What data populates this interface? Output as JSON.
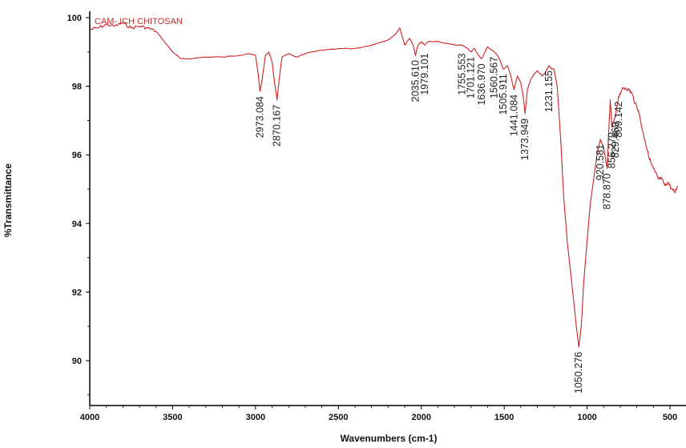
{
  "chart_data": {
    "type": "line",
    "title": "",
    "legend_entry": "CAM- ICH CHITOSAN",
    "legend_placement": "top-left",
    "xlabel": "Wavenumbers (cm-1)",
    "ylabel": "%Transmittance",
    "xlim": [
      4000,
      450
    ],
    "ylim": [
      88.7,
      100.4
    ],
    "x_reversed": true,
    "grid": false,
    "x_ticks": [
      "4000",
      "3500",
      "3000",
      "2500",
      "2000",
      "1500",
      "1000",
      "500"
    ],
    "y_ticks": [
      "100",
      "98",
      "96",
      "94",
      "92",
      "90"
    ],
    "series": [
      {
        "name": "CAM- ICH CHITOSAN",
        "color": "#cc2222",
        "x": [
          4000,
          3950,
          3900,
          3850,
          3800,
          3750,
          3700,
          3650,
          3600,
          3550,
          3500,
          3450,
          3400,
          3300,
          3200,
          3100,
          3050,
          3000,
          2985,
          2973,
          2960,
          2940,
          2920,
          2900,
          2885,
          2870,
          2855,
          2840,
          2800,
          2750,
          2700,
          2600,
          2500,
          2400,
          2300,
          2200,
          2150,
          2130,
          2100,
          2070,
          2050,
          2035,
          2020,
          2000,
          1979,
          1960,
          1900,
          1850,
          1800,
          1755,
          1720,
          1701,
          1680,
          1655,
          1636,
          1600,
          1560,
          1540,
          1530,
          1505,
          1480,
          1460,
          1441,
          1420,
          1400,
          1385,
          1374,
          1360,
          1340,
          1320,
          1300,
          1270,
          1250,
          1231,
          1215,
          1200,
          1180,
          1160,
          1140,
          1120,
          1100,
          1080,
          1065,
          1050,
          1035,
          1020,
          1000,
          980,
          960,
          940,
          920,
          900,
          879,
          860,
          850,
          830,
          810,
          790,
          770,
          750,
          730,
          710,
          690,
          670,
          650,
          630,
          610,
          590,
          570,
          550,
          530,
          510,
          490,
          470,
          455
        ],
        "y": [
          99.65,
          99.7,
          99.8,
          99.75,
          99.85,
          99.7,
          99.75,
          99.7,
          99.6,
          99.3,
          99.0,
          98.8,
          98.8,
          98.85,
          98.85,
          98.9,
          98.95,
          98.9,
          98.4,
          97.85,
          98.2,
          98.9,
          99.0,
          98.7,
          98.1,
          97.6,
          98.3,
          98.85,
          98.95,
          98.85,
          98.95,
          99.05,
          99.1,
          99.1,
          99.2,
          99.35,
          99.55,
          99.7,
          99.2,
          99.4,
          99.2,
          98.9,
          99.2,
          99.3,
          99.2,
          99.3,
          99.3,
          99.25,
          99.2,
          99.2,
          99.1,
          99.0,
          99.1,
          98.9,
          98.8,
          99.15,
          99.0,
          98.9,
          98.8,
          98.5,
          98.6,
          98.3,
          97.9,
          98.3,
          98.1,
          97.7,
          97.2,
          97.9,
          98.2,
          98.35,
          98.45,
          98.3,
          98.4,
          98.6,
          98.5,
          98.5,
          98.0,
          96.5,
          94.7,
          93.5,
          92.6,
          91.7,
          91.0,
          90.4,
          91.0,
          92.3,
          93.5,
          94.6,
          95.3,
          96.0,
          96.45,
          96.2,
          95.6,
          97.6,
          96.8,
          97.1,
          97.7,
          97.9,
          97.95,
          97.9,
          97.8,
          97.5,
          97.3,
          96.8,
          96.4,
          96.0,
          95.7,
          95.5,
          95.3,
          95.3,
          95.1,
          95.2,
          95.0,
          94.9,
          95.1
        ]
      }
    ],
    "peak_labels": [
      {
        "text": "2973.084",
        "x": 2973,
        "y": 97.85
      },
      {
        "text": "2870.167",
        "x": 2870,
        "y": 97.6
      },
      {
        "text": "2035.610",
        "x": 2035,
        "y": 98.9
      },
      {
        "text": "1979.101",
        "x": 1979,
        "y": 99.1
      },
      {
        "text": "1755.553",
        "x": 1755,
        "y": 99.1
      },
      {
        "text": "1701.121",
        "x": 1701,
        "y": 99.0
      },
      {
        "text": "1636.970",
        "x": 1636,
        "y": 98.8
      },
      {
        "text": "1560.567",
        "x": 1560,
        "y": 99.0
      },
      {
        "text": "1505.911",
        "x": 1505,
        "y": 98.5
      },
      {
        "text": "1441.084",
        "x": 1441,
        "y": 97.9
      },
      {
        "text": "1373.949",
        "x": 1374,
        "y": 97.2
      },
      {
        "text": "1231.155",
        "x": 1231,
        "y": 98.6
      },
      {
        "text": "1050.276",
        "x": 1050,
        "y": 90.4
      },
      {
        "text": "920.581",
        "x": 920,
        "y": 96.45
      },
      {
        "text": "878.870",
        "x": 879,
        "y": 95.6
      },
      {
        "text": "856.270",
        "x": 850,
        "y": 96.8
      },
      {
        "text": "829.469",
        "x": 829,
        "y": 97.1
      },
      {
        "text": "809.142",
        "x": 809,
        "y": 97.7
      }
    ]
  }
}
